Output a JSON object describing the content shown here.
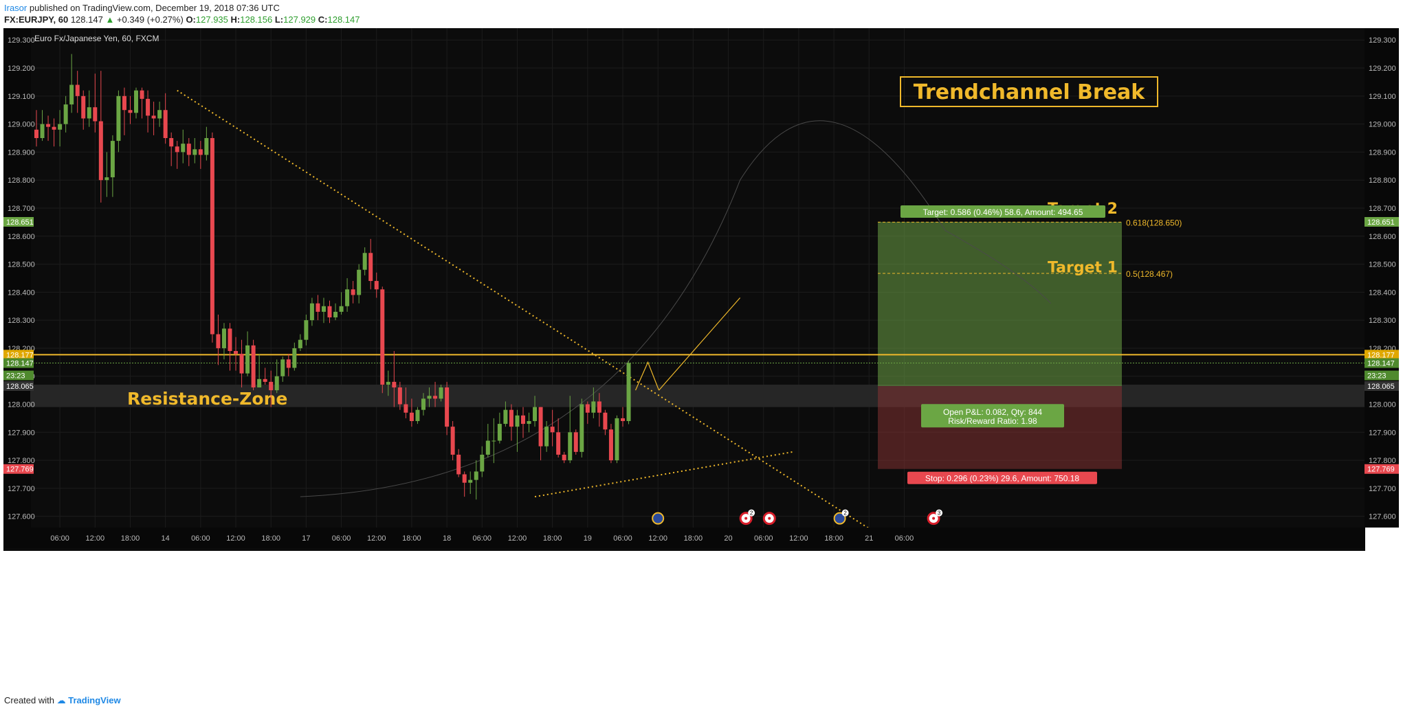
{
  "header": {
    "user": "Irasor",
    "published": "published on TradingView.com, December 19, 2018 07:36 UTC",
    "symbol": "FX:EURJPY, 60",
    "last": "128.147",
    "change": "+0.349 (+0.27%)",
    "arrow": "▲",
    "o_label": "O:",
    "o": "127.935",
    "h_label": "H:",
    "h": "128.156",
    "l_label": "L:",
    "l": "127.929",
    "c_label": "C:",
    "c": "128.147"
  },
  "footer": {
    "created_with": "Created with",
    "brand": "TradingView"
  },
  "colors": {
    "background": "#0c0c0c",
    "up": "#6ba644",
    "down": "#e8484f",
    "gold": "#f0b92b",
    "grid": "#1c1c1c"
  },
  "chart_data": {
    "type": "candlestick",
    "instrument": "Euro Fx/Japanese Yen, 60, FXCM",
    "y_axis": {
      "min": 127.56,
      "max": 129.33,
      "ticks": [
        "129.300",
        "129.200",
        "129.100",
        "129.000",
        "128.900",
        "128.800",
        "128.700",
        "128.600",
        "128.500",
        "128.400",
        "128.300",
        "128.200",
        "128.100",
        "128.000",
        "127.900",
        "127.800",
        "127.700",
        "127.600"
      ]
    },
    "x_ticks": [
      {
        "label": "06:00",
        "bar": 4
      },
      {
        "label": "12:00",
        "bar": 10
      },
      {
        "label": "18:00",
        "bar": 16
      },
      {
        "label": "14",
        "bar": 22
      },
      {
        "label": "06:00",
        "bar": 28
      },
      {
        "label": "12:00",
        "bar": 34
      },
      {
        "label": "18:00",
        "bar": 40
      },
      {
        "label": "17",
        "bar": 46
      },
      {
        "label": "06:00",
        "bar": 52
      },
      {
        "label": "12:00",
        "bar": 58
      },
      {
        "label": "18:00",
        "bar": 64
      },
      {
        "label": "18",
        "bar": 70
      },
      {
        "label": "06:00",
        "bar": 76
      },
      {
        "label": "12:00",
        "bar": 82
      },
      {
        "label": "18:00",
        "bar": 88
      },
      {
        "label": "19",
        "bar": 94
      },
      {
        "label": "06:00",
        "bar": 100
      },
      {
        "label": "12:00",
        "bar": 106
      },
      {
        "label": "18:00",
        "bar": 112
      },
      {
        "label": "20",
        "bar": 118
      },
      {
        "label": "06:00",
        "bar": 124
      },
      {
        "label": "12:00",
        "bar": 130
      },
      {
        "label": "18:00",
        "bar": 136
      },
      {
        "label": "21",
        "bar": 142
      },
      {
        "label": "06:00",
        "bar": 148
      }
    ],
    "candles": [
      [
        128.98,
        128.95,
        129.05,
        128.92
      ],
      [
        128.95,
        129.0,
        129.05,
        128.94
      ],
      [
        129.0,
        128.99,
        129.03,
        128.94
      ],
      [
        128.99,
        128.98,
        129.02,
        128.92
      ],
      [
        128.98,
        129.0,
        129.05,
        128.92
      ],
      [
        129.0,
        129.07,
        129.1,
        128.97
      ],
      [
        129.07,
        129.14,
        129.25,
        129.04
      ],
      [
        129.14,
        129.1,
        129.19,
        129.04
      ],
      [
        129.1,
        129.02,
        129.12,
        128.98
      ],
      [
        129.02,
        129.06,
        129.12,
        128.99
      ],
      [
        129.06,
        129.01,
        129.18,
        128.97
      ],
      [
        129.01,
        128.8,
        129.19,
        128.72
      ],
      [
        128.8,
        128.81,
        128.9,
        128.74
      ],
      [
        128.81,
        128.94,
        128.96,
        128.74
      ],
      [
        128.94,
        129.1,
        129.12,
        128.9
      ],
      [
        129.1,
        129.05,
        129.13,
        128.96
      ],
      [
        129.05,
        129.04,
        129.1,
        129.0
      ],
      [
        129.04,
        129.12,
        129.13,
        129.02
      ],
      [
        129.12,
        129.09,
        129.13,
        129.02
      ],
      [
        129.09,
        129.03,
        129.12,
        128.97
      ],
      [
        129.03,
        129.02,
        129.08,
        128.96
      ],
      [
        129.02,
        129.05,
        129.08,
        128.99
      ],
      [
        129.05,
        128.95,
        129.11,
        128.93
      ],
      [
        128.95,
        128.92,
        128.97,
        128.85
      ],
      [
        128.92,
        128.9,
        128.94,
        128.84
      ],
      [
        128.9,
        128.93,
        128.98,
        128.86
      ],
      [
        128.93,
        128.89,
        128.95,
        128.85
      ],
      [
        128.89,
        128.91,
        128.95,
        128.86
      ],
      [
        128.91,
        128.89,
        128.94,
        128.84
      ],
      [
        128.89,
        128.95,
        128.99,
        128.87
      ],
      [
        128.95,
        128.25,
        128.97,
        128.22
      ],
      [
        128.25,
        128.2,
        128.32,
        128.14
      ],
      [
        128.2,
        128.27,
        128.29,
        128.16
      ],
      [
        128.27,
        128.19,
        128.29,
        128.12
      ],
      [
        128.19,
        128.18,
        128.24,
        128.12
      ],
      [
        128.18,
        128.11,
        128.23,
        128.06
      ],
      [
        128.11,
        128.21,
        128.26,
        128.1
      ],
      [
        128.21,
        128.06,
        128.23,
        128.05
      ],
      [
        128.06,
        128.09,
        128.18,
        128.06
      ],
      [
        128.09,
        128.08,
        128.13,
        128.07
      ],
      [
        128.08,
        128.05,
        128.12,
        127.99
      ],
      [
        128.05,
        128.1,
        128.16,
        128.04
      ],
      [
        128.1,
        128.16,
        128.17,
        128.08
      ],
      [
        128.16,
        128.13,
        128.18,
        128.1
      ],
      [
        128.13,
        128.2,
        128.22,
        128.12
      ],
      [
        128.2,
        128.23,
        128.25,
        128.19
      ],
      [
        128.23,
        128.3,
        128.32,
        128.21
      ],
      [
        128.3,
        128.36,
        128.38,
        128.28
      ],
      [
        128.36,
        128.33,
        128.39,
        128.3
      ],
      [
        128.33,
        128.35,
        128.38,
        128.29
      ],
      [
        128.35,
        128.31,
        128.37,
        128.29
      ],
      [
        128.31,
        128.33,
        128.36,
        128.3
      ],
      [
        128.33,
        128.35,
        128.4,
        128.32
      ],
      [
        128.35,
        128.41,
        128.45,
        128.33
      ],
      [
        128.41,
        128.39,
        128.44,
        128.36
      ],
      [
        128.39,
        128.48,
        128.5,
        128.36
      ],
      [
        128.48,
        128.54,
        128.56,
        128.46
      ],
      [
        128.54,
        128.44,
        128.59,
        128.41
      ],
      [
        128.44,
        128.41,
        128.47,
        128.38
      ],
      [
        128.41,
        128.07,
        128.42,
        128.04
      ],
      [
        128.07,
        128.08,
        128.12,
        128.03
      ],
      [
        128.08,
        128.06,
        128.19,
        127.99
      ],
      [
        128.06,
        128.0,
        128.08,
        127.98
      ],
      [
        128.0,
        127.97,
        128.06,
        127.95
      ],
      [
        127.97,
        127.94,
        128.02,
        127.92
      ],
      [
        127.94,
        127.98,
        127.99,
        127.93
      ],
      [
        127.98,
        128.02,
        128.04,
        127.96
      ],
      [
        128.02,
        128.03,
        128.06,
        127.99
      ],
      [
        128.03,
        128.02,
        128.08,
        127.99
      ],
      [
        128.02,
        128.06,
        128.07,
        128.01
      ],
      [
        128.06,
        127.92,
        128.08,
        127.89
      ],
      [
        127.92,
        127.82,
        127.94,
        127.8
      ],
      [
        127.82,
        127.75,
        127.84,
        127.74
      ],
      [
        127.75,
        127.72,
        127.76,
        127.67
      ],
      [
        127.72,
        127.73,
        127.76,
        127.68
      ],
      [
        127.73,
        127.76,
        127.8,
        127.66
      ],
      [
        127.76,
        127.82,
        127.85,
        127.74
      ],
      [
        127.82,
        127.87,
        127.93,
        127.81
      ],
      [
        127.87,
        127.87,
        127.95,
        127.79
      ],
      [
        127.87,
        127.93,
        127.97,
        127.86
      ],
      [
        127.93,
        127.98,
        128.01,
        127.92
      ],
      [
        127.98,
        127.92,
        128.0,
        127.87
      ],
      [
        127.92,
        127.96,
        127.98,
        127.83
      ],
      [
        127.96,
        127.93,
        127.99,
        127.88
      ],
      [
        127.93,
        127.94,
        127.97,
        127.9
      ],
      [
        127.94,
        127.99,
        128.03,
        127.92
      ],
      [
        127.99,
        127.85,
        127.99,
        127.8
      ],
      [
        127.85,
        127.92,
        127.94,
        127.83
      ],
      [
        127.92,
        127.9,
        127.98,
        127.85
      ],
      [
        127.9,
        127.82,
        127.95,
        127.81
      ],
      [
        127.82,
        127.8,
        127.83,
        127.79
      ],
      [
        127.8,
        127.9,
        128.03,
        127.79
      ],
      [
        127.9,
        127.83,
        127.91,
        127.82
      ],
      [
        127.83,
        128.0,
        128.02,
        127.81
      ],
      [
        128.0,
        127.97,
        128.01,
        127.93
      ],
      [
        127.97,
        128.01,
        128.06,
        127.95
      ],
      [
        128.01,
        127.97,
        128.04,
        127.92
      ],
      [
        127.97,
        127.91,
        127.98,
        127.89
      ],
      [
        127.91,
        127.8,
        127.93,
        127.79
      ],
      [
        127.8,
        127.95,
        127.96,
        127.79
      ],
      [
        127.95,
        127.94,
        127.99,
        127.92
      ],
      [
        127.94,
        128.147,
        128.156,
        127.929
      ]
    ],
    "overlays": {
      "resistance_zone": {
        "label": "Resistance-Zone",
        "top": 128.07,
        "bottom": 127.99
      },
      "horizontal_line": 128.177,
      "current_price_line": 128.147,
      "target_zone": {
        "top": 128.651,
        "entry": 128.065,
        "stop": 127.769
      },
      "fib_levels": [
        {
          "label": "0.618(128.650)",
          "value": 128.65
        },
        {
          "label": "0.5(128.467)",
          "value": 128.467
        }
      ],
      "target_labels": [
        "Target 2",
        "Target 1"
      ],
      "arc_peak": 128.98
    },
    "annotations": {
      "title": "Trendchannel Break",
      "target_box": "Target: 0.586 (0.46%) 58.6, Amount: 494.65",
      "open_pnl": "Open P&L: 0.082, Qty: 844",
      "rr_ratio": "Risk/Reward Ratio: 1.98",
      "stop_box": "Stop: 0.296 (0.23%) 29.6, Amount: 750.18"
    },
    "price_tags": {
      "target": "128.651",
      "hline": "128.177",
      "last": "128.147",
      "countdown": "23:23",
      "entry": "128.065",
      "stop": "127.769"
    },
    "events": [
      {
        "bar": 106,
        "icon": "globe",
        "badge": ""
      },
      {
        "bar": 121,
        "icon": "target",
        "badge": "2"
      },
      {
        "bar": 125,
        "icon": "target",
        "badge": ""
      },
      {
        "bar": 137,
        "icon": "globe",
        "badge": "2"
      },
      {
        "bar": 153,
        "icon": "target",
        "badge": "3"
      }
    ]
  }
}
